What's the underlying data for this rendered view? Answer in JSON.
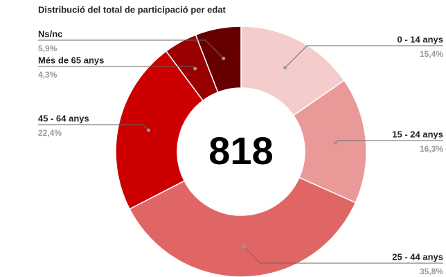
{
  "chart_data": {
    "type": "donut",
    "title": "Distribució del total de participació per edat",
    "categories": [
      "0 - 14 anys",
      "15 - 24 anys",
      "25 - 44 anys",
      "45 - 64 anys",
      "Més de 65 anys",
      "Ns/nc"
    ],
    "values": [
      15.4,
      16.3,
      35.8,
      22.4,
      4.3,
      5.9
    ],
    "value_labels": [
      "15,4%",
      "16,3%",
      "35,8%",
      "22,4%",
      "4,3%",
      "5,9%"
    ],
    "colors": [
      "#f4cccc",
      "#ea9999",
      "#e06666",
      "#cc0000",
      "#990000",
      "#660000"
    ],
    "total": 818
  }
}
